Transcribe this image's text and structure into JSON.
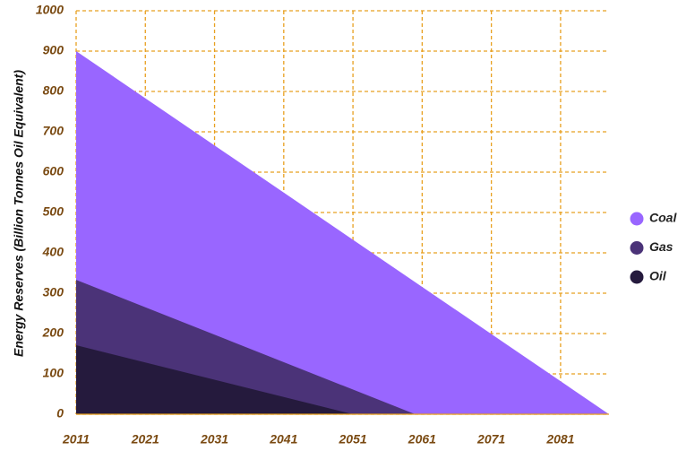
{
  "chart_data": {
    "type": "area",
    "y_label": "Energy Reserves (Billion Tonnes Oil Equivalent)",
    "xlim": [
      2011,
      2088
    ],
    "ylim": [
      0,
      1000
    ],
    "xticks": [
      2011,
      2021,
      2031,
      2041,
      2051,
      2061,
      2071,
      2081
    ],
    "yticks": [
      0,
      100,
      200,
      300,
      400,
      500,
      600,
      700,
      800,
      900,
      1000
    ],
    "grid": true,
    "legend": "right",
    "series": [
      {
        "name": "Coal",
        "color": "#9966ff",
        "x": [
          2011,
          2088
        ],
        "values": [
          900,
          0
        ]
      },
      {
        "name": "Gas",
        "color": "#4b3378",
        "x": [
          2011,
          2060
        ],
        "values": [
          333,
          0
        ]
      },
      {
        "name": "Oil",
        "color": "#251a3d",
        "x": [
          2011,
          2051
        ],
        "values": [
          171,
          0
        ]
      }
    ]
  }
}
